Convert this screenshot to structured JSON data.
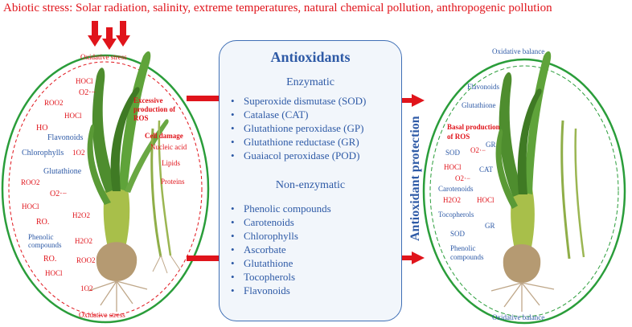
{
  "title": "Abiotic stress: Solar radiation, salinity, extreme temperatures, natural chemical pollution, anthropogenic pollution",
  "left_panel": {
    "top_label": "Oxidative stress",
    "bottom_label": "Oxidative stress",
    "excessive_ros": "Excessive production of ROS",
    "cell_damage": "Cell damage",
    "damage_targets": [
      "Nucleic acid",
      "Lipids",
      "Proteins"
    ],
    "species": {
      "hocl1": "HOCl",
      "o2a": "O2·−",
      "roo2a": "ROO2",
      "hocl2": "HOCl",
      "ho": "HO",
      "flavonoids": "Flavonoids",
      "chlorophylls": "Chlorophylls",
      "o1a": "1O2",
      "glutathione": "Glutathione",
      "roo2b": "ROO2",
      "o2b": "O2·−",
      "hocl3": "HOCl",
      "h2o2a": "H2O2",
      "roa": "RO.",
      "phenolic": "Phenolic compounds",
      "h2o2b": "H2O2",
      "rob": "RO.",
      "roo2c": "ROO2",
      "hocl4": "HOCl",
      "o1b": "1O2"
    }
  },
  "center_panel": {
    "title": "Antioxidants",
    "enzymatic_heading": "Enzymatic",
    "enzymatic": [
      "Superoxide dismutase (SOD)",
      "Catalase (CAT)",
      "Glutathione peroxidase (GP)",
      "Glutathione reductase (GR)",
      "Guaiacol peroxidase (POD)"
    ],
    "non_enzymatic_heading": "Non-enzymatic",
    "non_enzymatic": [
      "Phenolic compounds",
      "Carotenoids",
      "Chlorophylls",
      "Ascorbate",
      "Glutathione",
      "Tocopherols",
      "Flavonoids"
    ]
  },
  "protection_label": "Antioxidant  protection",
  "right_panel": {
    "top_label": "Oxidative balance",
    "bottom_label": "Oxidative balance",
    "basal_ros": "Basal production of ROS",
    "species": {
      "flavonoids": "Flavonoids",
      "glutathione": "Glutathione",
      "sod1": "SOD",
      "o2a": "O2·−",
      "gr1": "GR",
      "hocl1": "HOCl",
      "cat": "CAT",
      "o2b": "O2·−",
      "carotenoids": "Carotenoids",
      "h2o2": "H2O2",
      "hocl2": "HOCl",
      "tocopherols": "Tocopherols",
      "gr2": "GR",
      "sod2": "SOD",
      "phenolic": "Phenolic compounds"
    }
  },
  "colors": {
    "stress_red": "#e0141b",
    "antioxidant_blue": "#2e5aa6",
    "balance_green": "#2a9d3a"
  }
}
